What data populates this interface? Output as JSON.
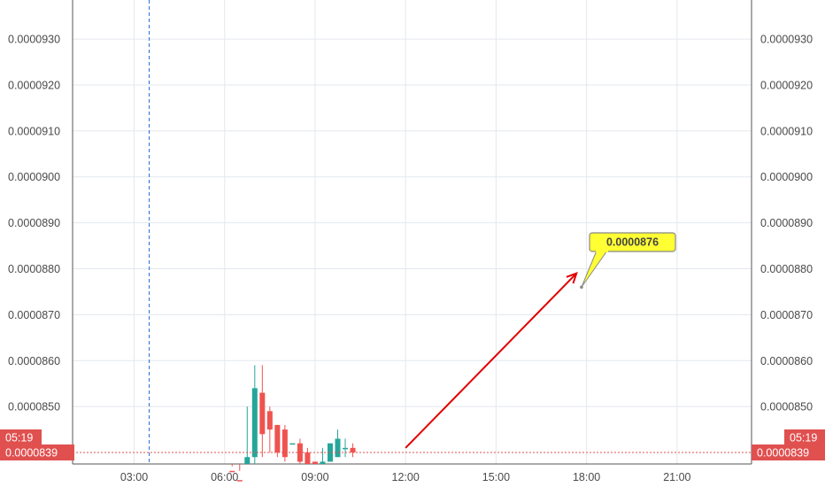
{
  "chart_data": {
    "type": "candlestick",
    "y_ticks": [
      "0.0000930",
      "0.0000920",
      "0.0000910",
      "0.0000900",
      "0.0000890",
      "0.0000880",
      "0.0000870",
      "0.0000860",
      "0.0000850"
    ],
    "ylim": [
      8.375e-05,
      9.385e-05
    ],
    "x_ticks": [
      "03:00",
      "06:00",
      "09:00",
      "12:00",
      "15:00",
      "18:00",
      "21:00"
    ],
    "xlim_hours": [
      0.96,
      23.47
    ],
    "current_price": {
      "value": 8.4e-05,
      "label": "0.0000840",
      "color": "#e0504f"
    },
    "countdown": "05:19",
    "low_label": {
      "value": 8.39e-05,
      "label": "0.0000839"
    },
    "dashed_line_time": "03:30",
    "callout": {
      "label": "0.0000876",
      "time": "17:50",
      "value": 8.76e-05,
      "color": "#ffff33"
    },
    "arrow": {
      "from": {
        "time": "12:00",
        "value": 8.41e-05
      },
      "to": {
        "time": "17:40",
        "value": 8.79e-05
      },
      "color": "#e00000"
    },
    "up_color": "#26a69a",
    "down_color": "#ef5350",
    "candles": [
      {
        "t": "06:15",
        "o": 8.36e-05,
        "h": 8.37e-05,
        "l": 8.33e-05,
        "c": 8.34e-05
      },
      {
        "t": "06:30",
        "o": 8.34e-05,
        "h": 8.36e-05,
        "l": 8.3e-05,
        "c": 8.33e-05
      },
      {
        "t": "06:45",
        "o": 8.33e-05,
        "h": 8.5e-05,
        "l": 8.33e-05,
        "c": 8.39e-05
      },
      {
        "t": "07:00",
        "o": 8.39e-05,
        "h": 8.59e-05,
        "l": 8.36e-05,
        "c": 8.54e-05
      },
      {
        "t": "07:15",
        "o": 8.53e-05,
        "h": 8.59e-05,
        "l": 8.39e-05,
        "c": 8.44e-05
      },
      {
        "t": "07:30",
        "o": 8.49e-05,
        "h": 8.5e-05,
        "l": 8.4e-05,
        "c": 8.45e-05
      },
      {
        "t": "07:45",
        "o": 8.46e-05,
        "h": 8.46e-05,
        "l": 8.39e-05,
        "c": 8.4e-05
      },
      {
        "t": "08:00",
        "o": 8.45e-05,
        "h": 8.46e-05,
        "l": 8.38e-05,
        "c": 8.39e-05
      },
      {
        "t": "08:15",
        "o": 8.42e-05,
        "h": 8.42e-05,
        "l": 8.42e-05,
        "c": 8.42e-05
      },
      {
        "t": "08:30",
        "o": 8.42e-05,
        "h": 8.43e-05,
        "l": 8.35e-05,
        "c": 8.38e-05
      },
      {
        "t": "08:45",
        "o": 8.4e-05,
        "h": 8.41e-05,
        "l": 8.35e-05,
        "c": 8.35e-05
      },
      {
        "t": "09:00",
        "o": 8.38e-05,
        "h": 8.38e-05,
        "l": 8.33e-05,
        "c": 8.34e-05
      },
      {
        "t": "09:15",
        "o": 8.36e-05,
        "h": 8.41e-05,
        "l": 8.36e-05,
        "c": 8.38e-05
      },
      {
        "t": "09:30",
        "o": 8.38e-05,
        "h": 8.42e-05,
        "l": 8.38e-05,
        "c": 8.42e-05
      },
      {
        "t": "09:45",
        "o": 8.39e-05,
        "h": 8.45e-05,
        "l": 8.39e-05,
        "c": 8.43e-05
      },
      {
        "t": "10:00",
        "o": 8.41e-05,
        "h": 8.43e-05,
        "l": 8.39e-05,
        "c": 8.41e-05
      },
      {
        "t": "10:15",
        "o": 8.41e-05,
        "h": 8.42e-05,
        "l": 8.39e-05,
        "c": 8.4e-05
      }
    ]
  }
}
